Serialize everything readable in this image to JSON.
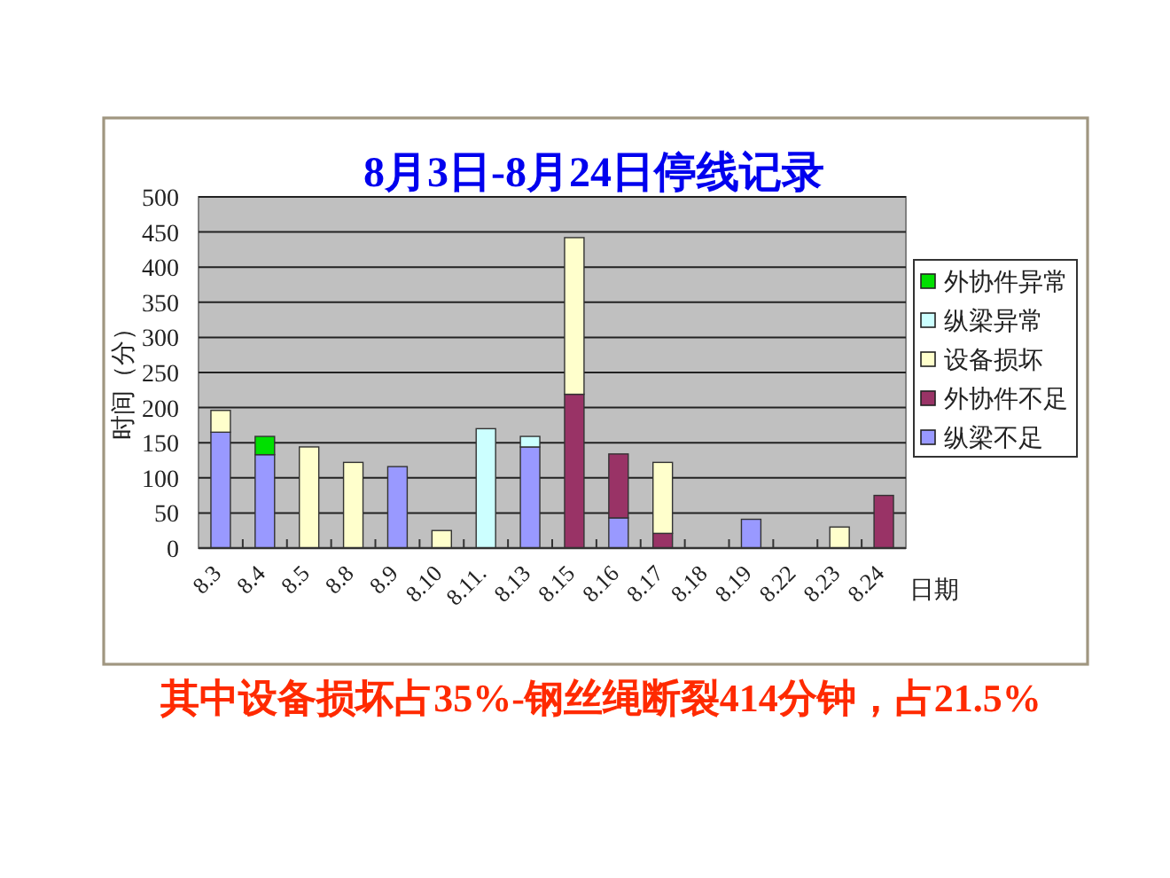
{
  "chart_data": {
    "type": "bar",
    "title": "8月3日-8月24日停线记录",
    "xlabel": "日期",
    "ylabel": "时间（分）",
    "categories": [
      "8.3",
      "8.4",
      "8.5",
      "8.8",
      "8.9",
      "8.10",
      "8.11.",
      "8.13",
      "8.15",
      "8.16",
      "8.17",
      "8.18",
      "8.19",
      "8.22",
      "8.23",
      "8.24"
    ],
    "stacked": true,
    "series": [
      {
        "name": "纵梁不足",
        "color": "#9999ff",
        "values": [
          165,
          133,
          null,
          null,
          116,
          null,
          null,
          144,
          null,
          43,
          null,
          null,
          41,
          null,
          null,
          null
        ]
      },
      {
        "name": "外协件不足",
        "color": "#993366",
        "values": [
          null,
          null,
          null,
          null,
          null,
          null,
          null,
          null,
          219,
          91,
          21,
          null,
          null,
          null,
          null,
          75
        ]
      },
      {
        "name": "设备损坏",
        "color": "#ffffcc",
        "values": [
          31,
          null,
          144,
          122,
          null,
          25,
          null,
          null,
          223,
          null,
          101,
          null,
          null,
          null,
          30,
          null
        ]
      },
      {
        "name": "纵梁异常",
        "color": "#ccffff",
        "values": [
          null,
          null,
          null,
          null,
          null,
          null,
          170,
          15,
          null,
          null,
          null,
          null,
          null,
          null,
          null,
          null
        ]
      },
      {
        "name": "外协件异常",
        "color": "#00e000",
        "values": [
          null,
          26,
          null,
          null,
          null,
          null,
          null,
          null,
          null,
          null,
          null,
          null,
          null,
          null,
          null,
          null
        ]
      }
    ],
    "ylim": [
      0,
      500
    ],
    "yticks": [
      0,
      50,
      100,
      150,
      200,
      250,
      300,
      350,
      400,
      450,
      500
    ],
    "grid": "y",
    "legend": "right",
    "annotations": [
      "其中设备损坏占35%-钢丝绳断裂414分钟，占21.5%"
    ]
  }
}
